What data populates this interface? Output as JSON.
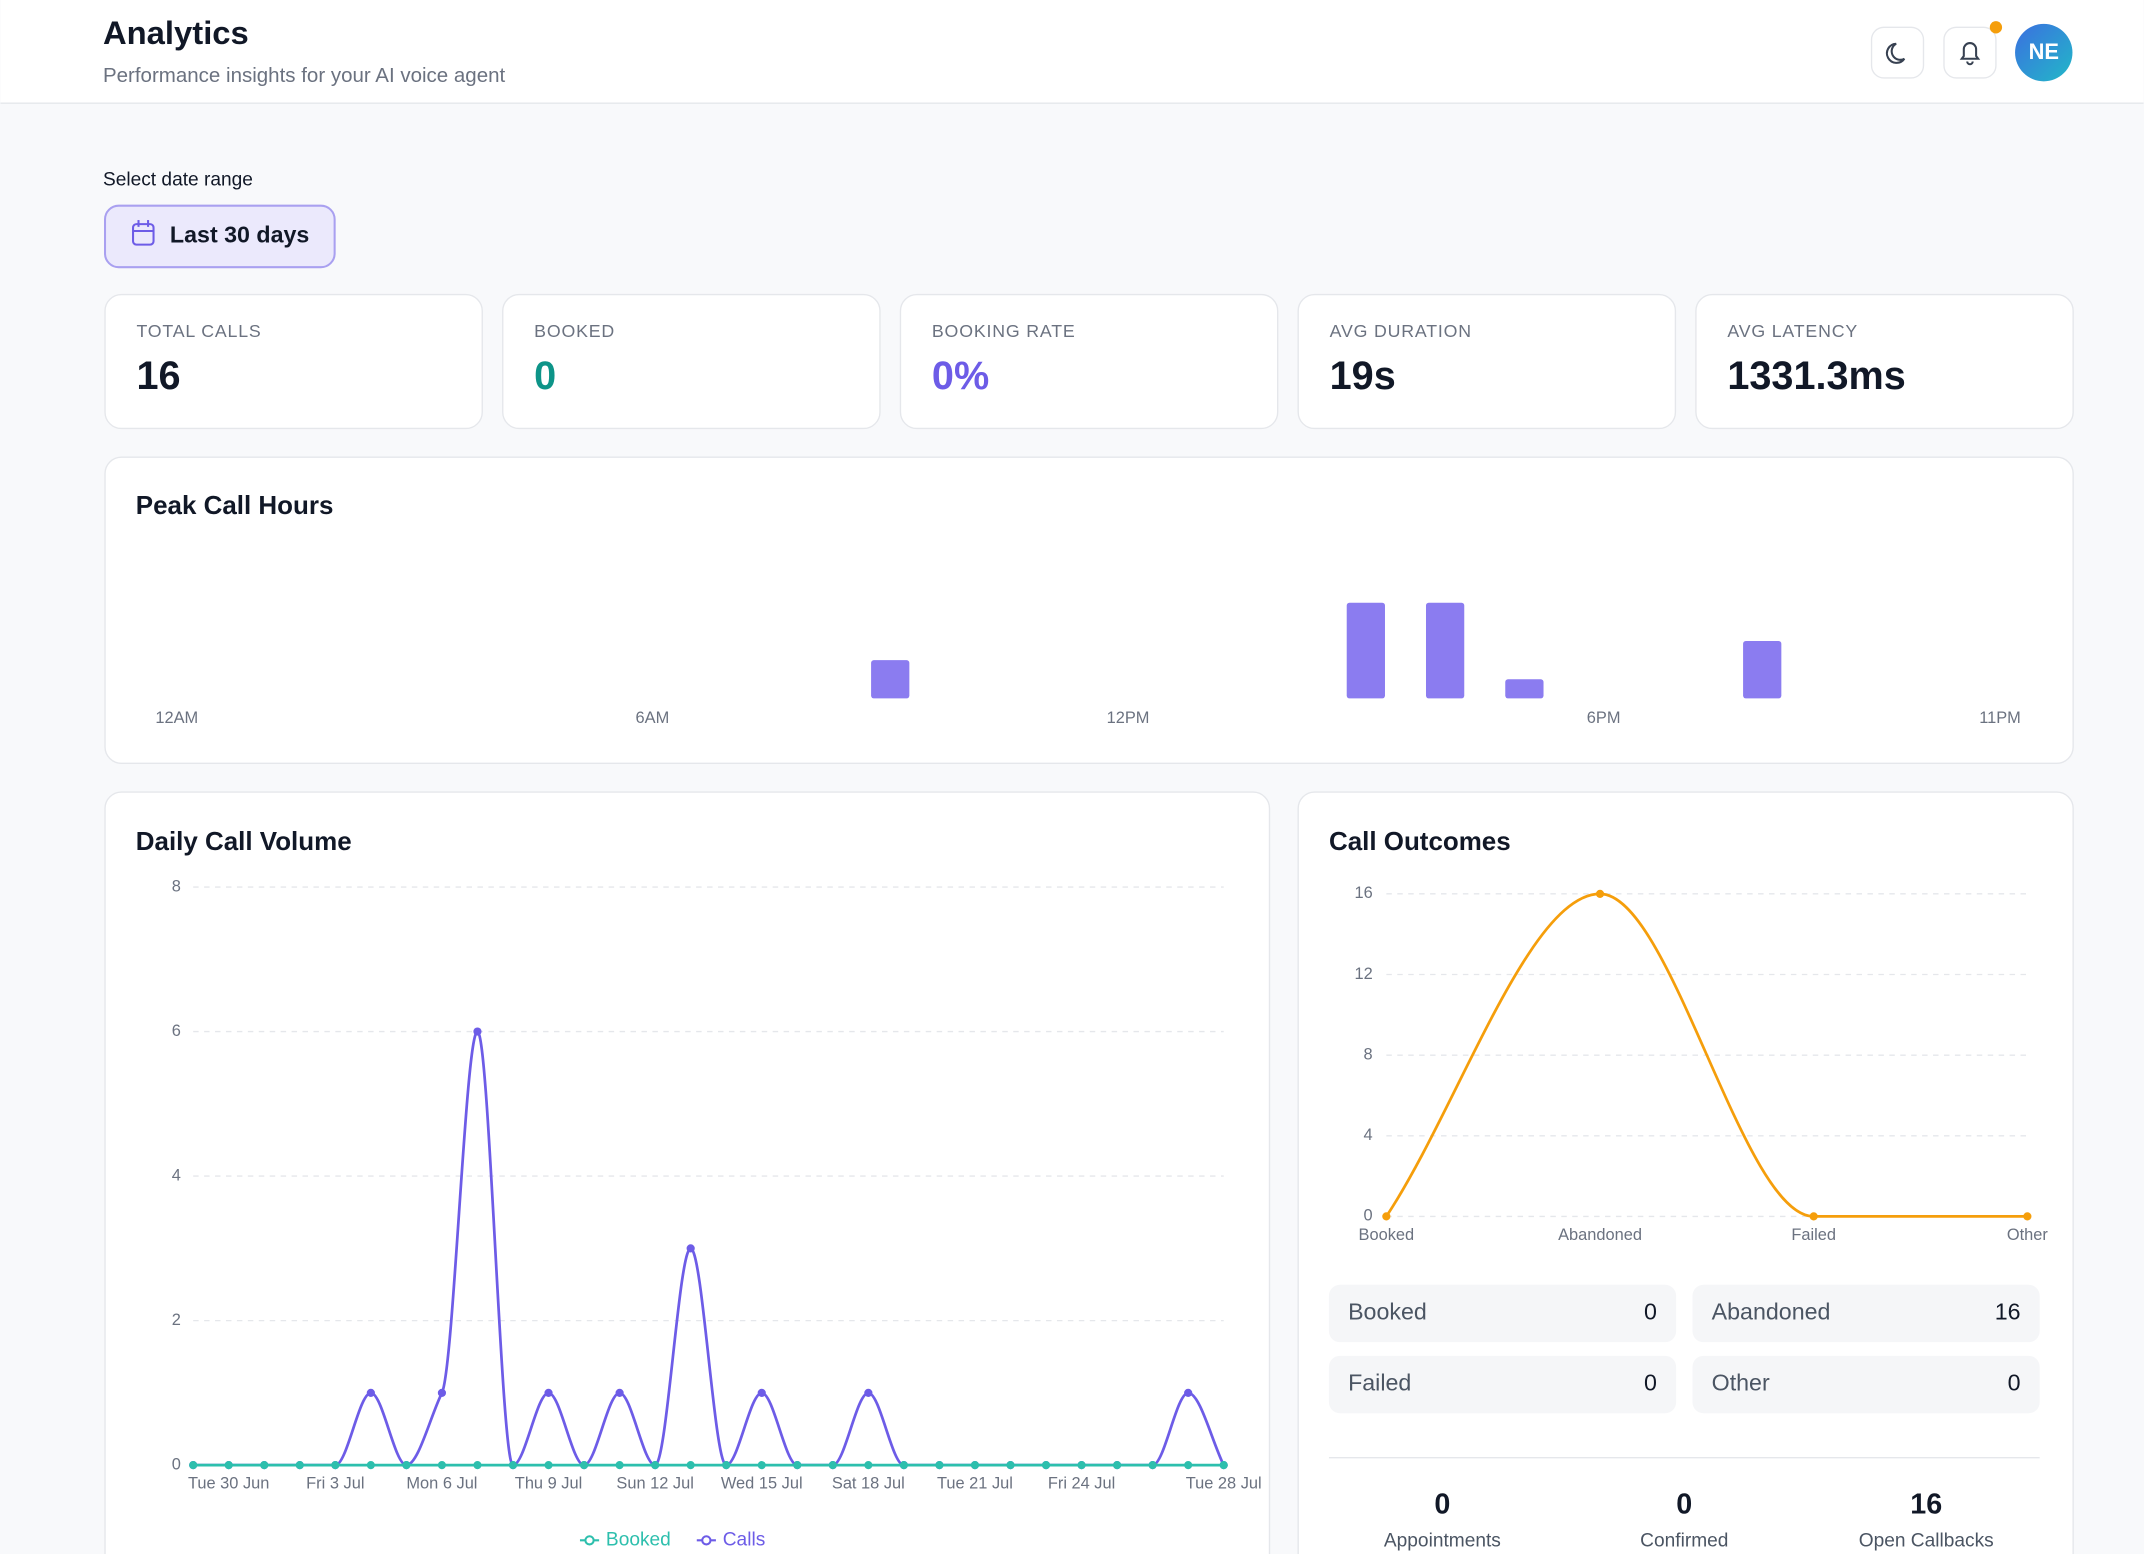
{
  "header": {
    "title": "Analytics",
    "subtitle": "Performance insights for your AI voice agent",
    "avatar": "NE"
  },
  "date_range": {
    "label": "Select date range",
    "button": "Last 30 days"
  },
  "stats": [
    {
      "label": "TOTAL CALLS",
      "value": "16"
    },
    {
      "label": "BOOKED",
      "value": "0"
    },
    {
      "label": "BOOKING RATE",
      "value": "0%"
    },
    {
      "label": "AVG DURATION",
      "value": "19s"
    },
    {
      "label": "AVG LATENCY",
      "value": "1331.3ms"
    }
  ],
  "chart_data": [
    {
      "type": "bar",
      "title": "Peak Call Hours",
      "categories": [
        "12AM",
        null,
        null,
        null,
        null,
        null,
        "6AM",
        null,
        null,
        null,
        null,
        null,
        "12PM",
        null,
        null,
        null,
        null,
        null,
        "6PM",
        null,
        null,
        null,
        null,
        "11PM"
      ],
      "values": [
        0,
        0,
        0,
        0,
        0,
        0,
        0,
        0,
        0,
        2,
        0,
        0,
        0,
        0,
        0,
        5,
        5,
        1,
        0,
        0,
        3,
        0,
        0,
        0
      ],
      "color": "#8b7cf0"
    },
    {
      "type": "line",
      "title": "Daily Call Volume",
      "categories": [
        null,
        "Tue 30 Jun",
        null,
        null,
        "Fri 3 Jul",
        null,
        null,
        "Mon 6 Jul",
        null,
        null,
        "Thu 9 Jul",
        null,
        null,
        "Sun 12 Jul",
        null,
        null,
        "Wed 15 Jul",
        null,
        null,
        "Sat 18 Jul",
        null,
        null,
        "Tue 21 Jul",
        null,
        null,
        "Fri 24 Jul",
        null,
        null,
        null,
        "Tue 28 Jul"
      ],
      "series": [
        {
          "name": "Calls",
          "color": "#6d5ce7",
          "values": [
            0,
            0,
            0,
            0,
            0,
            1,
            0,
            1,
            6,
            0,
            1,
            0,
            1,
            0,
            3,
            0,
            1,
            0,
            0,
            1,
            0,
            0,
            0,
            0,
            0,
            0,
            0,
            0,
            1,
            0
          ]
        },
        {
          "name": "Booked",
          "color": "#2dbfad",
          "values": [
            0,
            0,
            0,
            0,
            0,
            0,
            0,
            0,
            0,
            0,
            0,
            0,
            0,
            0,
            0,
            0,
            0,
            0,
            0,
            0,
            0,
            0,
            0,
            0,
            0,
            0,
            0,
            0,
            0,
            0
          ]
        }
      ],
      "ylim": [
        0,
        8
      ],
      "yticks": [
        0,
        2,
        4,
        6,
        8
      ],
      "grid": true
    },
    {
      "type": "line",
      "title": "Call Outcomes",
      "categories": [
        "Booked",
        "Abandoned",
        "Failed",
        "Other"
      ],
      "values": [
        0,
        16,
        0,
        0
      ],
      "color": "#f59e0b",
      "ylim": [
        0,
        16
      ],
      "yticks": [
        0,
        4,
        8,
        12,
        16
      ],
      "grid": true
    }
  ],
  "outcome_summary": [
    {
      "label": "Booked",
      "value": "0"
    },
    {
      "label": "Abandoned",
      "value": "16"
    },
    {
      "label": "Failed",
      "value": "0"
    },
    {
      "label": "Other",
      "value": "0"
    }
  ],
  "totals": [
    {
      "value": "0",
      "label": "Appointments"
    },
    {
      "value": "0",
      "label": "Confirmed"
    },
    {
      "value": "16",
      "label": "Open Callbacks"
    }
  ]
}
